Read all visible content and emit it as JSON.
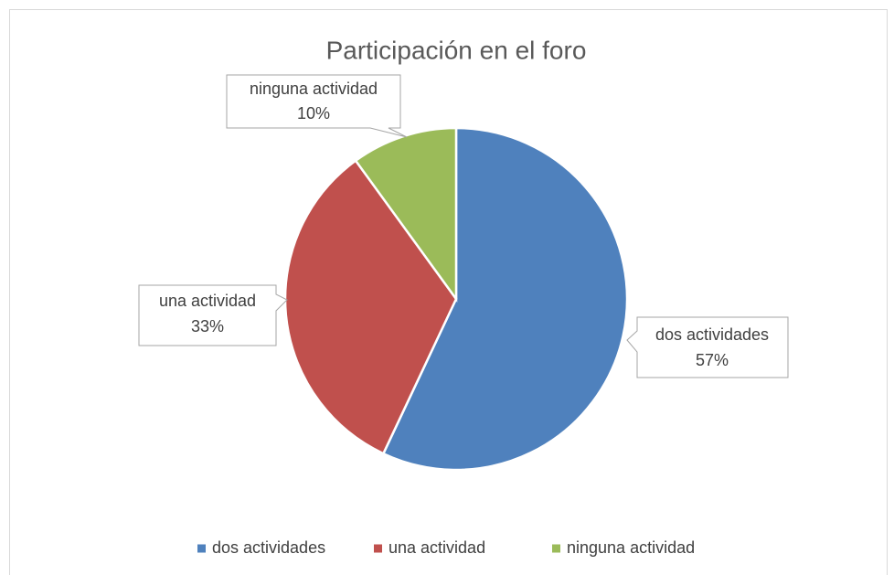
{
  "chart_data": {
    "type": "pie",
    "title": "Participación en el foro",
    "categories": [
      "dos actividades",
      "una actividad",
      "ninguna actividad"
    ],
    "values": [
      57,
      33,
      10
    ],
    "value_labels": [
      "57%",
      "33%",
      "10%"
    ],
    "colors": [
      "#4f81bd",
      "#c0504d",
      "#9bbb59"
    ],
    "legend": "bottom"
  }
}
